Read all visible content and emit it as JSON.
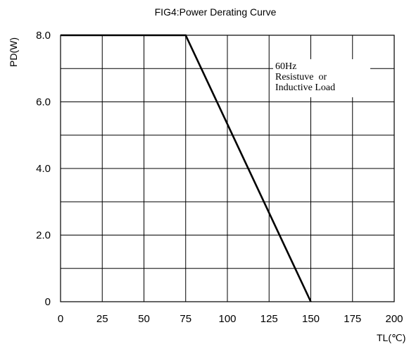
{
  "chart_data": {
    "type": "line",
    "title": "FIG4:Power Derating Curve",
    "xlabel": "TL(℃)",
    "ylabel": "PD(W)",
    "xlim": [
      0,
      200
    ],
    "ylim": [
      0,
      8
    ],
    "x_ticks": [
      0,
      25,
      50,
      75,
      100,
      125,
      150,
      175,
      200
    ],
    "x_tick_labels": [
      "0",
      "25",
      "50",
      "75",
      "100",
      "125",
      "150",
      "175",
      "200"
    ],
    "y_ticks": [
      0,
      2,
      4,
      6,
      8
    ],
    "y_tick_labels": [
      "0",
      "2.0",
      "4.0",
      "6.0",
      "8.0"
    ],
    "y_grid_step": 1,
    "grid": true,
    "series": [
      {
        "x": [
          0,
          75,
          150
        ],
        "y": [
          8.0,
          8.0,
          0
        ]
      }
    ],
    "annotation": {
      "lines": [
        "60Hz",
        "Resistuve  or",
        "Inductive Load"
      ]
    }
  }
}
